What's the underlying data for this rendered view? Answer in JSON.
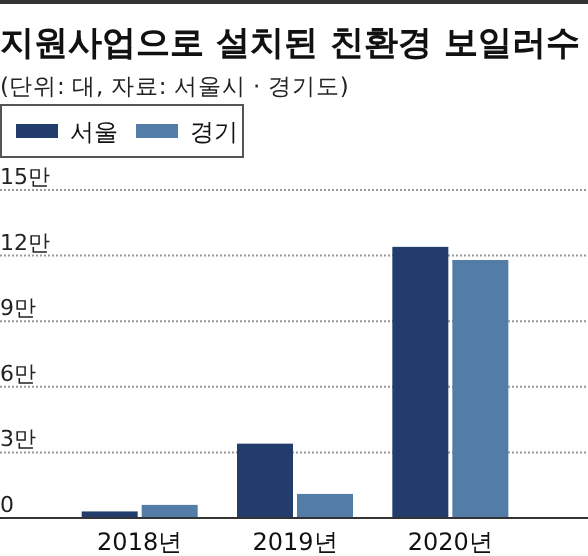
{
  "chart_data": {
    "type": "bar",
    "title": "지원사업으로 설치된 친환경 보일러수",
    "subtitle": "(단위: 대, 자료: 서울시 · 경기도)",
    "categories": [
      "2018년",
      "2019년",
      "2020년"
    ],
    "series": [
      {
        "name": "서울",
        "color": "#223d6b",
        "values": [
          0.3,
          3.4,
          12.4
        ]
      },
      {
        "name": "경기",
        "color": "#537ca6",
        "values": [
          0.6,
          1.1,
          11.8
        ]
      }
    ],
    "ylim": [
      0,
      15
    ],
    "yticks": [
      0,
      {
        "value": 3,
        "label": "3만"
      },
      {
        "value": 6,
        "label": "6만"
      },
      {
        "value": 9,
        "label": "9만"
      },
      {
        "value": 12,
        "label": "12만"
      },
      {
        "value": 15,
        "label": "15만"
      }
    ],
    "grid": "y",
    "legend": "top left"
  }
}
